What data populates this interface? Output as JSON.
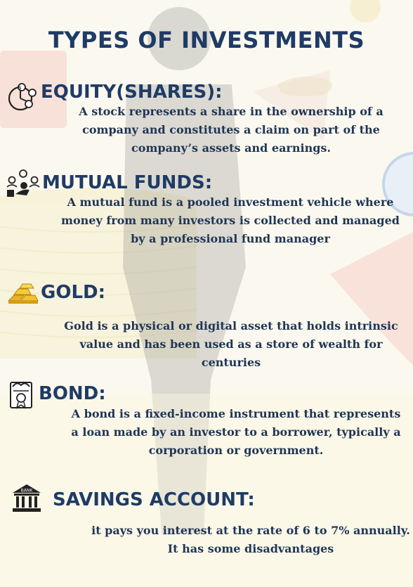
{
  "title": "TYPES OF INVESTMENTS",
  "sections": [
    {
      "heading": "EQUITY(SHARES):",
      "icon": "equity-chart-icon",
      "text": "A stock represents a share in the ownership of a company and constitutes a claim on part of the company’s assets and earnings."
    },
    {
      "heading": "MUTUAL FUNDS:",
      "icon": "mutual-fund-people-icon",
      "text": "A mutual fund is a pooled investment vehicle where money from many investors is collected and managed by a professional fund manager"
    },
    {
      "heading": "GOLD:",
      "icon": "gold-bars-icon",
      "text": "Gold is a physical or digital asset that holds intrinsic value and has been used as a store of wealth for centuries"
    },
    {
      "heading": "BOND:",
      "icon": "bond-certificate-icon",
      "text": "A bond is a fixed-income instrument that represents a loan made by an investor to a borrower, typically a corporation or government."
    },
    {
      "heading": "SAVINGS ACCOUNT:",
      "icon": "bank-icon",
      "icon_label": "BANK",
      "text": "it pays you interest at the rate of 6 to 7% annually. It has some disadvantages"
    }
  ],
  "colors": {
    "heading": "#1f3b66",
    "body": "#1f3556",
    "background": "#fbf9ef",
    "gold": "#f2c230"
  }
}
